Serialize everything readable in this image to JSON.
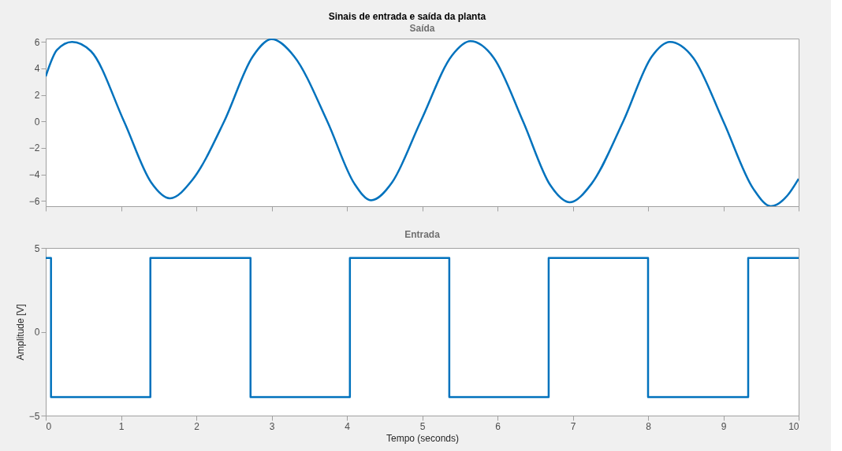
{
  "chart_data": [
    {
      "type": "line",
      "title": "Sinais de entrada e saída da planta",
      "subtitle": "Saída",
      "xlim": [
        0,
        10
      ],
      "xticks": [
        0,
        1,
        2,
        3,
        4,
        5,
        6,
        7,
        8,
        9,
        10
      ],
      "ylim": [
        -6.4,
        6.25
      ],
      "yticks": [
        -6,
        -4,
        -2,
        0,
        2,
        4,
        6
      ],
      "tick_labels": "y",
      "grid": false,
      "legend": false,
      "series": [
        {
          "color": "#0072bd",
          "x": [
            0,
            0.15,
            0.35,
            0.6,
            1.04,
            1.4,
            1.65,
            1.95,
            2.37,
            2.75,
            3.0,
            3.3,
            3.74,
            4.1,
            4.32,
            4.6,
            4.98,
            5.4,
            5.64,
            5.95,
            6.34,
            6.7,
            6.96,
            7.25,
            7.67,
            8.05,
            8.29,
            8.6,
            9.0,
            9.4,
            9.63,
            9.85,
            10
          ],
          "values": [
            3.4,
            5.4,
            6.0,
            5.3,
            0,
            -4.6,
            -5.8,
            -4.4,
            0,
            4.9,
            6.2,
            4.9,
            0,
            -4.7,
            -5.95,
            -4.6,
            0,
            5.0,
            6.05,
            4.8,
            0,
            -4.8,
            -6.1,
            -4.7,
            0,
            4.9,
            6.0,
            4.8,
            0,
            -5.1,
            -6.4,
            -5.6,
            -4.33
          ]
        }
      ]
    },
    {
      "type": "line",
      "title": "Entrada",
      "xlabel": "Tempo (seconds)",
      "ylabel": "Amplitude [V]",
      "xlim": [
        0,
        10
      ],
      "xticks": [
        0,
        1,
        2,
        3,
        4,
        5,
        6,
        7,
        8,
        9,
        10
      ],
      "ylim": [
        -5,
        5
      ],
      "yticks": [
        -5,
        0,
        5
      ],
      "grid": false,
      "legend": false,
      "series": [
        {
          "color": "#0072bd",
          "x": [
            0,
            0.07,
            0.07,
            1.39,
            1.39,
            2.72,
            2.72,
            4.04,
            4.04,
            5.36,
            5.36,
            6.68,
            6.68,
            8.0,
            8.0,
            9.33,
            9.33,
            10
          ],
          "values": [
            4.4,
            4.4,
            -3.9,
            -3.9,
            4.4,
            4.4,
            -3.9,
            -3.9,
            4.4,
            4.4,
            -3.9,
            -3.9,
            4.4,
            4.4,
            -3.9,
            -3.9,
            4.4,
            4.4
          ]
        }
      ]
    }
  ]
}
